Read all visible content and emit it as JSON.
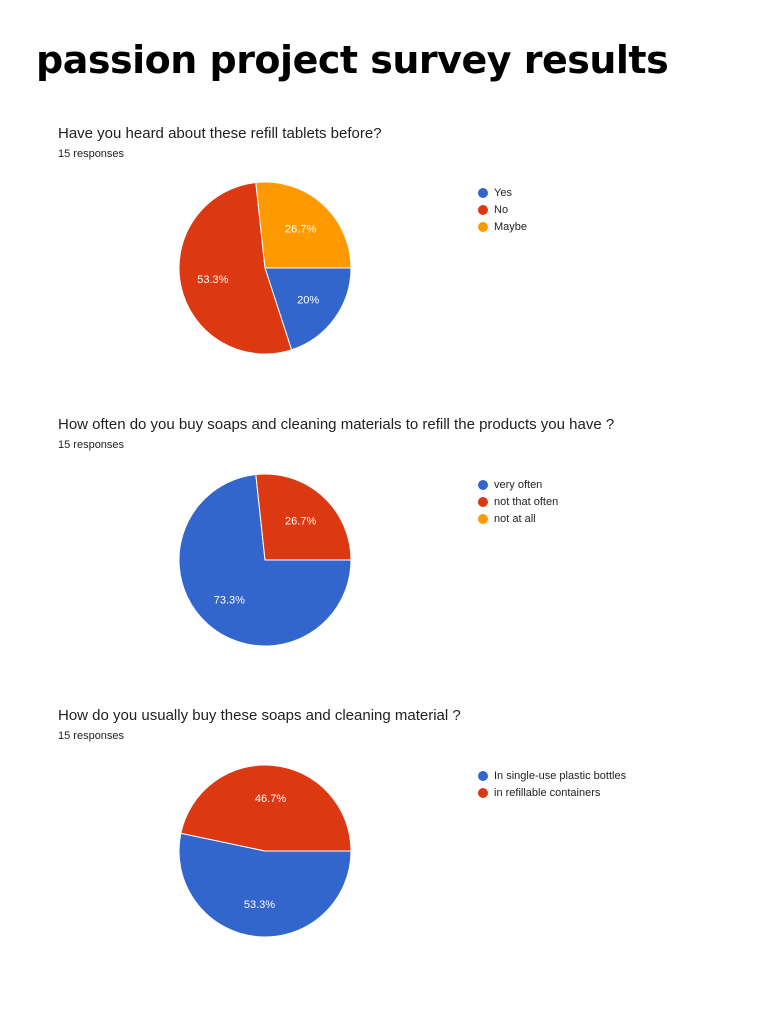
{
  "page": {
    "title": "passion project survey results"
  },
  "colors": {
    "blue": "#3366cc",
    "red": "#dc3912",
    "orange": "#ff9900"
  },
  "charts": [
    {
      "question": "Have you heard about these refill tablets before?",
      "responses": "15 responses",
      "legend": [
        {
          "label": "Yes",
          "color": "#3366cc"
        },
        {
          "label": "No",
          "color": "#dc3912"
        },
        {
          "label": "Maybe",
          "color": "#ff9900"
        }
      ],
      "slice_labels": [
        "20%",
        "53.3%",
        "26.7%"
      ]
    },
    {
      "question": "How often do you buy soaps and cleaning materials to refill the products you have ?",
      "responses": "15 responses",
      "legend": [
        {
          "label": "very often",
          "color": "#3366cc"
        },
        {
          "label": "not that often",
          "color": "#dc3912"
        },
        {
          "label": "not at all",
          "color": "#ff9900"
        }
      ],
      "slice_labels": [
        "73.3%",
        "26.7%",
        ""
      ]
    },
    {
      "question": "How do you usually buy these soaps and cleaning material ?",
      "responses": "15 responses",
      "legend": [
        {
          "label": "In single-use plastic bottles",
          "color": "#3366cc"
        },
        {
          "label": "in refillable containers",
          "color": "#dc3912"
        }
      ],
      "slice_labels": [
        "53.3%",
        "46.7%"
      ]
    }
  ],
  "chart_data": [
    {
      "type": "pie",
      "title": "Have you heard about these refill tablets before?",
      "subtitle": "15 responses",
      "categories": [
        "Yes",
        "No",
        "Maybe"
      ],
      "values": [
        20,
        53.3,
        26.7
      ],
      "counts": [
        3,
        8,
        4
      ],
      "colors": [
        "#3366cc",
        "#dc3912",
        "#ff9900"
      ],
      "legend_position": "right"
    },
    {
      "type": "pie",
      "title": "How often do you buy soaps and cleaning materials to refill the products you have ?",
      "subtitle": "15 responses",
      "categories": [
        "very often",
        "not that often",
        "not at all"
      ],
      "values": [
        73.3,
        26.7,
        0
      ],
      "counts": [
        11,
        4,
        0
      ],
      "colors": [
        "#3366cc",
        "#dc3912",
        "#ff9900"
      ],
      "legend_position": "right"
    },
    {
      "type": "pie",
      "title": "How do you usually buy these soaps and cleaning material ?",
      "subtitle": "15 responses",
      "categories": [
        "In single-use plastic bottles",
        "in refillable containers"
      ],
      "values": [
        53.3,
        46.7
      ],
      "counts": [
        8,
        7
      ],
      "colors": [
        "#3366cc",
        "#dc3912"
      ],
      "legend_position": "right"
    }
  ]
}
